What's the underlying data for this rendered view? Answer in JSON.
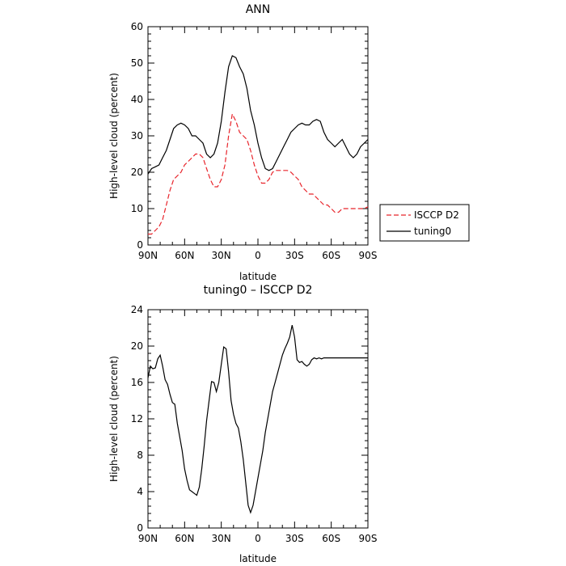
{
  "chart_data": [
    {
      "type": "line",
      "title": "ANN",
      "xlabel": "latitude",
      "ylabel": "High-level cloud (percent)",
      "xlim": [
        -90,
        90
      ],
      "ylim": [
        0,
        60
      ],
      "x_ticks": [
        -90,
        -60,
        -30,
        0,
        30,
        60,
        90
      ],
      "x_tick_labels": [
        "90N",
        "60N",
        "30N",
        "0",
        "30S",
        "60S",
        "90S"
      ],
      "y_ticks": [
        0,
        10,
        20,
        30,
        40,
        50,
        60
      ],
      "y_tick_labels": [
        "0",
        "10",
        "20",
        "30",
        "40",
        "50",
        "60"
      ],
      "legend_position": "outside-right",
      "grid": false,
      "series": [
        {
          "name": "ISCCP D2",
          "color": "#e8242b",
          "dash": true,
          "x": [
            -90,
            -87,
            -84,
            -81,
            -78,
            -75,
            -72,
            -69,
            -66,
            -63,
            -60,
            -57,
            -54,
            -51,
            -48,
            -45,
            -42,
            -39,
            -36,
            -33,
            -30,
            -27,
            -24,
            -21,
            -18,
            -15,
            -12,
            -9,
            -6,
            -3,
            0,
            3,
            6,
            9,
            12,
            15,
            18,
            21,
            24,
            27,
            30,
            33,
            36,
            39,
            42,
            45,
            48,
            51,
            54,
            57,
            60,
            63,
            66,
            69,
            72,
            75,
            78,
            81,
            84,
            87,
            90
          ],
          "y": [
            3,
            3,
            4,
            5,
            7,
            11,
            15,
            18,
            19,
            20,
            22,
            23,
            24,
            25,
            25,
            24,
            21,
            18,
            16,
            16,
            18,
            22,
            30,
            36,
            34,
            31,
            30,
            29,
            26,
            22,
            19,
            17,
            17,
            18,
            20,
            20.5,
            20.5,
            20.5,
            20.5,
            20,
            19,
            18,
            16,
            15,
            14,
            14,
            13,
            12,
            11,
            11,
            10,
            9,
            9,
            10,
            10,
            10,
            10,
            10,
            10,
            10,
            10.5
          ]
        },
        {
          "name": "tuning0",
          "color": "#000000",
          "dash": false,
          "x": [
            -90,
            -87,
            -84,
            -81,
            -78,
            -75,
            -72,
            -69,
            -66,
            -63,
            -60,
            -57,
            -54,
            -51,
            -48,
            -45,
            -42,
            -39,
            -36,
            -33,
            -30,
            -27,
            -24,
            -21,
            -18,
            -15,
            -12,
            -9,
            -6,
            -3,
            0,
            3,
            6,
            9,
            12,
            15,
            18,
            21,
            24,
            27,
            30,
            33,
            36,
            39,
            42,
            45,
            48,
            51,
            54,
            57,
            60,
            63,
            66,
            69,
            72,
            75,
            78,
            81,
            84,
            87,
            90
          ],
          "y": [
            19.5,
            21,
            21.5,
            22,
            24,
            26,
            29,
            32,
            33,
            33.5,
            33,
            32,
            30,
            30,
            29,
            28,
            25,
            24,
            25,
            28,
            34,
            42,
            49,
            52,
            51.5,
            49,
            47,
            43,
            37,
            33,
            28,
            24,
            21,
            20.5,
            21,
            23,
            25,
            27,
            29,
            31,
            32,
            33,
            33.5,
            33,
            33,
            34,
            34.5,
            34,
            31,
            29,
            28,
            27,
            28,
            29,
            27,
            25,
            24,
            25,
            27,
            28,
            29
          ]
        }
      ]
    },
    {
      "type": "line",
      "title": "tuning0 – ISCCP D2",
      "xlabel": "latitude",
      "ylabel": "High-level cloud (percent)",
      "xlim": [
        -90,
        90
      ],
      "ylim": [
        0,
        24
      ],
      "x_ticks": [
        -90,
        -60,
        -30,
        0,
        30,
        60,
        90
      ],
      "x_tick_labels": [
        "90N",
        "60N",
        "30N",
        "0",
        "30S",
        "60S",
        "90S"
      ],
      "y_ticks": [
        0,
        4,
        8,
        12,
        16,
        20,
        24
      ],
      "y_tick_labels": [
        "0",
        "4",
        "8",
        "12",
        "16",
        "20",
        "24"
      ],
      "grid": false,
      "series": [
        {
          "color": "#000000",
          "dash": false,
          "x": [
            -90,
            -88,
            -86,
            -84,
            -82,
            -80,
            -78,
            -76,
            -74,
            -72,
            -70,
            -68,
            -66,
            -64,
            -62,
            -60,
            -58,
            -56,
            -54,
            -52,
            -50,
            -48,
            -46,
            -44,
            -42,
            -40,
            -38,
            -36,
            -34,
            -32,
            -30,
            -28,
            -26,
            -24,
            -22,
            -20,
            -18,
            -16,
            -14,
            -12,
            -10,
            -8,
            -6,
            -4,
            -2,
            0,
            2,
            4,
            6,
            8,
            10,
            12,
            14,
            16,
            18,
            20,
            22,
            24,
            26,
            28,
            30,
            32,
            34,
            36,
            38,
            40,
            42,
            44,
            46,
            48,
            50,
            52,
            54,
            56,
            58,
            60,
            62,
            64,
            66,
            68,
            70,
            72,
            74,
            76,
            78,
            80,
            82,
            84,
            86,
            88,
            90
          ],
          "y": [
            16.5,
            17.8,
            17.5,
            17.6,
            18.6,
            19,
            17.8,
            16.3,
            15.8,
            14.7,
            13.8,
            13.6,
            11.5,
            10,
            8.5,
            6.5,
            5.2,
            4.2,
            4,
            3.8,
            3.6,
            4.5,
            6.5,
            9,
            11.8,
            14,
            16.1,
            16,
            15,
            16,
            18,
            19.9,
            19.7,
            17.2,
            14,
            12.5,
            11.5,
            11,
            9.5,
            7.5,
            5,
            2.5,
            1.7,
            2.5,
            4,
            5.5,
            7,
            8.5,
            10.5,
            12,
            13.5,
            15,
            16,
            17,
            18,
            19,
            19.7,
            20.3,
            21,
            22.3,
            21,
            18.5,
            18.2,
            18.3,
            18,
            17.8,
            18,
            18.5,
            18.7,
            18.6,
            18.7,
            18.6,
            18.7,
            18.7,
            18.7,
            18.7,
            18.7,
            18.7,
            18.7,
            18.7,
            18.7,
            18.7,
            18.7,
            18.7,
            18.7,
            18.7,
            18.7,
            18.7,
            18.7,
            18.7,
            18.7
          ]
        }
      ]
    }
  ]
}
